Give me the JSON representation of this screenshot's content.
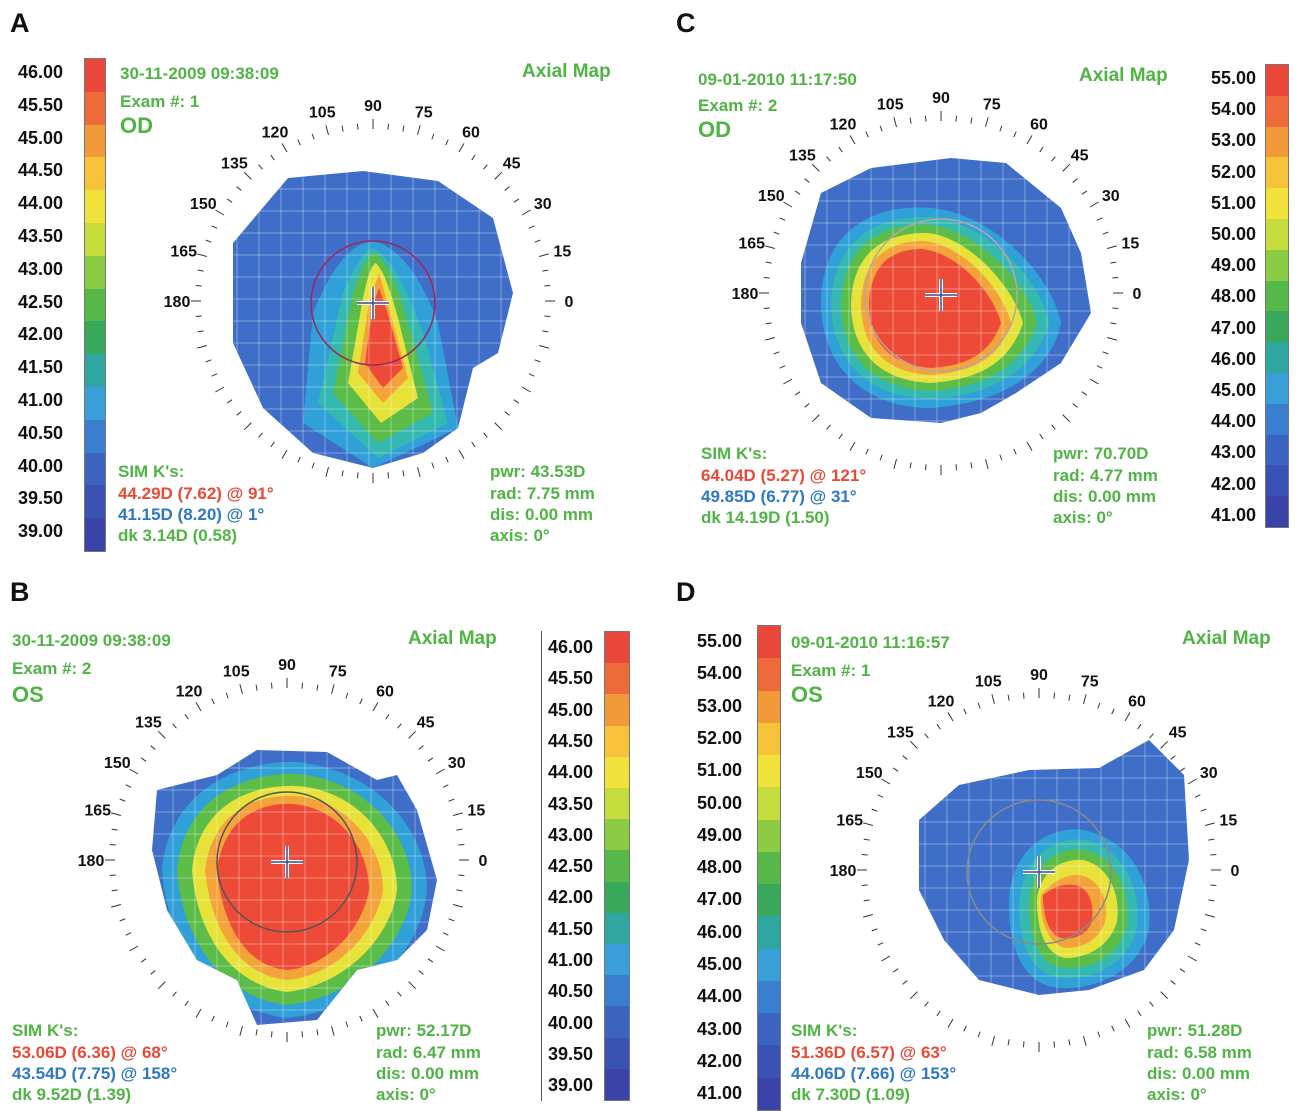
{
  "panels": {
    "A": {
      "letter": "A",
      "datetime": "30-11-2009 09:38:09",
      "exam": "Exam #: 1",
      "eye": "OD",
      "title": "Axial Map",
      "sim_label": "SIM K's:",
      "k1": "44.29D (7.62) @ 91°",
      "k2": "41.15D (8.20) @ 1°",
      "dk": "dk 3.14D (0.58)",
      "pwr": "pwr: 43.53D",
      "rad": "rad: 7.75 mm",
      "dis": "dis: 0.00 mm",
      "axis": "axis: 0°",
      "scale": [
        "46.00",
        "45.50",
        "45.00",
        "44.50",
        "44.00",
        "43.50",
        "43.00",
        "42.50",
        "42.00",
        "41.50",
        "41.00",
        "40.50",
        "40.00",
        "39.50",
        "39.00"
      ]
    },
    "B": {
      "letter": "B",
      "datetime": "30-11-2009 09:38:09",
      "exam": "Exam #: 2",
      "eye": "OS",
      "title": "Axial Map",
      "sim_label": "SIM K's:",
      "k1": "53.06D (6.36) @ 68°",
      "k2": "43.54D (7.75) @ 158°",
      "dk": "dk 9.52D (1.39)",
      "pwr": "pwr: 52.17D",
      "rad": "rad: 6.47 mm",
      "dis": "dis: 0.00 mm",
      "axis": "axis: 0°",
      "scale": [
        "46.00",
        "45.50",
        "45.00",
        "44.50",
        "44.00",
        "43.50",
        "43.00",
        "42.50",
        "42.00",
        "41.50",
        "41.00",
        "40.50",
        "40.00",
        "39.50",
        "39.00"
      ]
    },
    "C": {
      "letter": "C",
      "datetime": "09-01-2010 11:17:50",
      "exam": "Exam #: 2",
      "eye": "OD",
      "title": "Axial Map",
      "sim_label": "SIM K's:",
      "k1": "64.04D (5.27) @ 121°",
      "k2": "49.85D (6.77) @ 31°",
      "dk": "dk 14.19D (1.50)",
      "pwr": "pwr: 70.70D",
      "rad": "rad: 4.77 mm",
      "dis": "dis: 0.00 mm",
      "axis": "axis: 0°",
      "scale": [
        "55.00",
        "54.00",
        "53.00",
        "52.00",
        "51.00",
        "50.00",
        "49.00",
        "48.00",
        "47.00",
        "46.00",
        "45.00",
        "44.00",
        "43.00",
        "42.00",
        "41.00"
      ]
    },
    "D": {
      "letter": "D",
      "datetime": "09-01-2010 11:16:57",
      "exam": "Exam #: 1",
      "eye": "OS",
      "title": "Axial Map",
      "sim_label": "SIM K's:",
      "k1": "51.36D (6.57) @ 63°",
      "k2": "44.06D (7.66) @ 153°",
      "dk": "dk 7.30D (1.09)",
      "pwr": "pwr: 51.28D",
      "rad": "rad: 6.58 mm",
      "dis": "dis: 0.00 mm",
      "axis": "axis: 0°",
      "scale": [
        "55.00",
        "54.00",
        "53.00",
        "52.00",
        "51.00",
        "50.00",
        "49.00",
        "48.00",
        "47.00",
        "46.00",
        "45.00",
        "44.00",
        "43.00",
        "42.00",
        "41.00"
      ]
    }
  },
  "angle_labels": [
    "0",
    "15",
    "30",
    "45",
    "60",
    "75",
    "90",
    "105",
    "120",
    "135",
    "150",
    "165",
    "180"
  ],
  "scale_colors": [
    "#e8473a",
    "#ee6a3a",
    "#f29a3a",
    "#f5c23a",
    "#f0e23a",
    "#c6dc3c",
    "#8ccc44",
    "#56b848",
    "#3aa85a",
    "#2fa6a0",
    "#3a9ed8",
    "#3a7ed0",
    "#3a64c0",
    "#3a52b4",
    "#3a44a8"
  ],
  "map_colors": {
    "blue": "#3e6ec8",
    "lightblue": "#2fa0d8",
    "cyan": "#35b8b0",
    "green": "#5cbc48",
    "yellow": "#e6e23a",
    "orange": "#f4a23a",
    "red": "#ee4a38"
  }
}
